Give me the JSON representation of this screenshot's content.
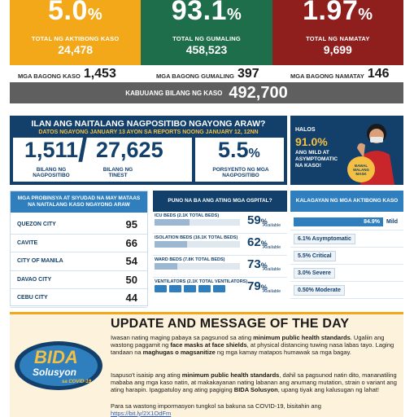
{
  "top_stats": [
    {
      "big": "5.0",
      "pct": "%",
      "label": "TOTAL NG AKTIBONG KASO",
      "value": "24,478",
      "color": "#f3a81a"
    },
    {
      "big": "93.1",
      "pct": "%",
      "label": "TOTAL NG GUMALING",
      "value": "458,523",
      "color": "#1e6e4c"
    },
    {
      "big": "1.97",
      "pct": "%",
      "label": "TOTAL NG NAMATAY",
      "value": "9,699",
      "color": "#8e1f1d"
    }
  ],
  "new_counts": [
    {
      "label": "MGA BAGONG KASO",
      "value": "1,453"
    },
    {
      "label": "MGA BAGONG GUMALING",
      "value": "397"
    },
    {
      "label": "MGA BAGONG NAMATAY",
      "value": "146"
    }
  ],
  "total": {
    "label": "KABUUANG BILANG NG KASO",
    "value": "492,700"
  },
  "positivity": {
    "question": "ILAN ANG NAITALANG NAGPOSITIBO NGAYONG ARAW?",
    "subtitle": "DATOS NGAYONG JANUARY 13 AYON SA REPORTS NOONG JANUARY 12, 12NN",
    "positive": "1,511",
    "slash": "/",
    "tested": "27,625",
    "positive_cap_1": "BILANG NG",
    "positive_cap_2": "NAGPOSITIBO",
    "tested_cap_1": "BILANG NG",
    "tested_cap_2": "TINEST",
    "rate": "5.5",
    "rate_pct": "%",
    "rate_cap_1": "PORSYENTO NG MGA",
    "rate_cap_2": "NAGPOSITIBO"
  },
  "promo": {
    "line1": "HALOS",
    "pct": "91.0%",
    "line3": "ANG MILD AT ASYMPTOMATIC NA KASO!",
    "badge_1": "BAWAL",
    "badge_2": "WALANG",
    "badge_3": "MASK"
  },
  "provinces": {
    "header": "MGA PROBINSYA AT SIYUDAD NA MAY MATAAS NA NAITALANG KASO NGAYONG ARAW",
    "items": [
      {
        "name": "QUEZON CITY",
        "value": "95"
      },
      {
        "name": "CAVITE",
        "value": "66"
      },
      {
        "name": "CITY OF MANILA",
        "value": "54"
      },
      {
        "name": "DAVAO CITY",
        "value": "50"
      },
      {
        "name": "CEBU CITY",
        "value": "44"
      }
    ]
  },
  "beds": {
    "header": "PUNO NA BA ANG ATING MGA OSPITAL?",
    "available_label": "Available",
    "items": [
      {
        "label": "ICU BEDS (2.1K TOTAL BEDS)",
        "value": "59",
        "pct": "%",
        "fill": 0.41
      },
      {
        "label": "ISOLATION BEDS (16.1K TOTAL BEDS)",
        "value": "62",
        "pct": "%",
        "fill": 0.38
      },
      {
        "label": "WARD BEDS (7.8K TOTAL BEDS)",
        "value": "73",
        "pct": "%",
        "fill": 0.27
      },
      {
        "label": "VENTILATORS (2.1K TOTAL VENTILATORS)",
        "value": "79",
        "pct": "%",
        "fill": 0.21
      }
    ]
  },
  "active_status": {
    "header": "KALAGAYAN NG MGA AKTIBONG KASO",
    "items": [
      {
        "value": "84.9%",
        "label": "Mild"
      },
      {
        "value": "6.1% Asymptomatic",
        "label": ""
      },
      {
        "value": "5.5% Critical",
        "label": ""
      },
      {
        "value": "3.0% Severe",
        "label": ""
      },
      {
        "value": "0.50% Moderate",
        "label": ""
      }
    ]
  },
  "update": {
    "title": "UPDATE AND MESSAGE OF THE DAY",
    "p1_a": "Iwasan nating maging pabaya sa pagsunod sa ating ",
    "p1_b": "minimum public health standards",
    "p1_c": ". Ugaliin ang wastong paggamit ng ",
    "p1_d": "face masks at face shields",
    "p1_e": ", at physical distancing tuwing nasa labas tayo. Laging tandaan na ",
    "p1_f": "maghugas o magsanitize",
    "p1_g": " ng mga kamay matapos humawak sa mga bagay.",
    "p2_a": "Isapuso't isaisip ang ating ",
    "p2_b": "minimum public health standards",
    "p2_c": ", dahil sa pagsunod natin dito, mananatiling mababa ang mga kaso natin, at makakayanan nating labanan ang anumang mutation, strain o variant ang ating harapin. Ipagpatuloy ang ating pagiging ",
    "p2_d": "BIDA Solusyon",
    "p2_e": ", upang tiyak ang kalusugan ng lahat!",
    "p3": "Para sa wastong impormasyon tungkol sa bakuna sa COVID-19, bisitahin ang",
    "link": "https://bit.ly/2X1OdFm",
    "logo_1": "BIDA",
    "logo_2": "Solusyon",
    "logo_3": "sa COVID-19"
  },
  "colors": {
    "navy": "#13406b",
    "blue": "#2f7fbf",
    "yellow": "#f3a81a",
    "green": "#1e6e4c",
    "red": "#8e1f1d"
  }
}
